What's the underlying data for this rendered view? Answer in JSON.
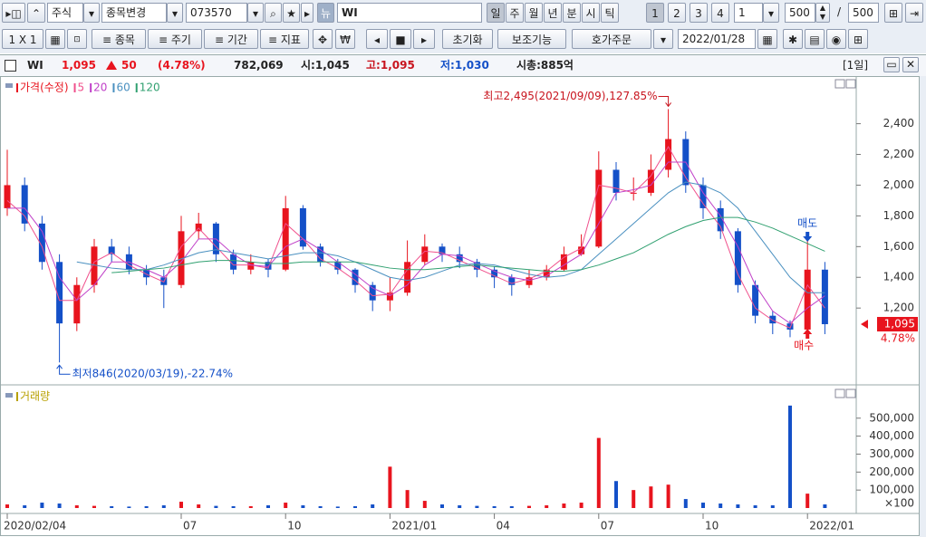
{
  "toolbar": {
    "stock_type": "주식",
    "change_stock": "종목변경",
    "code": "073570",
    "name": "WI",
    "periods": [
      "일",
      "주",
      "월",
      "년",
      "분",
      "시",
      "틱"
    ],
    "numbers": [
      "1",
      "2",
      "3",
      "4"
    ],
    "interval": "1",
    "count": "500",
    "slash": "/",
    "total": "500",
    "layout": "1 X 1",
    "menus": [
      "종목",
      "주기",
      "기간",
      "지표"
    ],
    "reset": "초기화",
    "aux": "보조기능",
    "order": "호가주문",
    "date": "2022/01/28"
  },
  "quote": {
    "name": "WI",
    "price": "1,095",
    "change": "50",
    "rate": "(4.78%)",
    "volume": "782,069",
    "open": "시:1,045",
    "high": "고:1,095",
    "low": "저:1,030",
    "market_cap": "시총:885억",
    "period": "[1일]"
  },
  "chart_data": [
    {
      "type": "candlestick",
      "legend_title": "가격(수정)",
      "up_color": "#e8141e",
      "down_color": "#1450c8",
      "open": [
        1850,
        2000,
        1750,
        1500,
        1100,
        1350,
        1600,
        1550,
        1450,
        1400,
        1350,
        1700,
        1750,
        1550,
        1450,
        1500,
        1450,
        1850,
        1600,
        1500,
        1450,
        1350,
        1250,
        1300,
        1500,
        1600,
        1550,
        1500,
        1450,
        1400,
        1350,
        1400,
        1450,
        1550,
        1600,
        2100,
        1950,
        1950,
        2100,
        2300,
        2000,
        1850,
        1700,
        1350,
        1150,
        1100,
        1060,
        1450
      ],
      "high": [
        2230,
        2050,
        1800,
        1550,
        1400,
        1650,
        1650,
        1600,
        1480,
        1450,
        1800,
        1820,
        1760,
        1580,
        1550,
        1520,
        1930,
        1870,
        1620,
        1520,
        1460,
        1370,
        1400,
        1640,
        1680,
        1620,
        1600,
        1520,
        1470,
        1420,
        1450,
        1480,
        1600,
        1680,
        2220,
        2150,
        2050,
        2200,
        2495,
        2350,
        2050,
        1900,
        1720,
        1380,
        1180,
        1120,
        1650,
        1500
      ],
      "low": [
        1800,
        1700,
        1450,
        846,
        1050,
        1300,
        1500,
        1420,
        1350,
        1200,
        1330,
        1650,
        1500,
        1420,
        1420,
        1400,
        1440,
        1580,
        1470,
        1420,
        1300,
        1180,
        1180,
        1280,
        1480,
        1500,
        1460,
        1400,
        1330,
        1280,
        1330,
        1380,
        1440,
        1540,
        1590,
        1900,
        1900,
        1930,
        2050,
        1950,
        1780,
        1650,
        1300,
        1100,
        1030,
        1010,
        1050,
        1030
      ],
      "close": [
        2000,
        1750,
        1500,
        1100,
        1350,
        1600,
        1550,
        1450,
        1400,
        1350,
        1700,
        1750,
        1550,
        1450,
        1500,
        1450,
        1850,
        1600,
        1500,
        1450,
        1350,
        1250,
        1300,
        1500,
        1600,
        1550,
        1500,
        1450,
        1400,
        1350,
        1400,
        1450,
        1550,
        1600,
        2100,
        1950,
        1950,
        2100,
        2300,
        2000,
        1850,
        1700,
        1350,
        1150,
        1100,
        1060,
        1450,
        1095
      ],
      "series": [
        {
          "name": "5",
          "color": "#f0508c",
          "values": [
            1900,
            1800,
            1600,
            1250,
            1250,
            1500,
            1560,
            1480,
            1420,
            1370,
            1600,
            1720,
            1600,
            1480,
            1480,
            1460,
            1750,
            1650,
            1520,
            1460,
            1380,
            1280,
            1290,
            1450,
            1570,
            1560,
            1510,
            1460,
            1410,
            1360,
            1390,
            1440,
            1530,
            1590,
            2000,
            1980,
            1950,
            2060,
            2250,
            2050,
            1880,
            1730,
            1420,
            1200,
            1120,
            1070,
            1350,
            1200
          ]
        },
        {
          "name": "20",
          "color": "#c040c8",
          "values": [
            1850,
            1850,
            1700,
            1400,
            1250,
            1350,
            1500,
            1500,
            1450,
            1400,
            1500,
            1650,
            1650,
            1550,
            1480,
            1470,
            1600,
            1650,
            1580,
            1500,
            1420,
            1330,
            1280,
            1350,
            1480,
            1550,
            1540,
            1490,
            1440,
            1400,
            1380,
            1410,
            1480,
            1550,
            1750,
            1950,
            1970,
            2000,
            2150,
            2150,
            1950,
            1800,
            1600,
            1350,
            1180,
            1100,
            1200,
            1280
          ]
        },
        {
          "name": "60",
          "color": "#4a90c0",
          "values": [
            null,
            null,
            null,
            null,
            1500,
            1480,
            1460,
            1450,
            1450,
            1480,
            1520,
            1560,
            1580,
            1560,
            1540,
            1520,
            1540,
            1560,
            1560,
            1540,
            1500,
            1450,
            1400,
            1380,
            1400,
            1440,
            1480,
            1490,
            1480,
            1450,
            1420,
            1400,
            1410,
            1450,
            1550,
            1650,
            1750,
            1850,
            1950,
            2020,
            2000,
            1950,
            1850,
            1700,
            1550,
            1400,
            1300,
            1300
          ]
        },
        {
          "name": "120",
          "color": "#30a070",
          "values": [
            null,
            null,
            null,
            null,
            null,
            null,
            1430,
            1440,
            1450,
            1460,
            1480,
            1500,
            1510,
            1510,
            1500,
            1490,
            1490,
            1500,
            1500,
            1500,
            1500,
            1480,
            1460,
            1450,
            1450,
            1460,
            1470,
            1480,
            1470,
            1460,
            1450,
            1440,
            1440,
            1450,
            1480,
            1520,
            1560,
            1620,
            1680,
            1730,
            1770,
            1790,
            1790,
            1760,
            1720,
            1670,
            1620,
            1570
          ]
        }
      ],
      "ylim": [
        700,
        2710
      ],
      "yticks": [
        {
          "value": 1200,
          "label": "1,200"
        },
        {
          "value": 1400,
          "label": "1,400"
        },
        {
          "value": 1600,
          "label": "1,600"
        },
        {
          "value": 1800,
          "label": "1,800"
        },
        {
          "value": 2000,
          "label": "2,000"
        },
        {
          "value": 2200,
          "label": "2,200"
        },
        {
          "value": 2400,
          "label": "2,400"
        }
      ],
      "annotations": {
        "high": "최고2,495(2021/09/09),127.85%",
        "low": "최저846(2020/03/19),-22.74%",
        "sell": "매도",
        "buy": "매수"
      },
      "last_price": "1,095",
      "last_change": "4.78%"
    },
    {
      "type": "bar",
      "legend_title": "거래량",
      "categories": [
        "2020/02/04",
        null,
        null,
        null,
        null,
        null,
        null,
        null,
        null,
        null,
        "07",
        null,
        null,
        null,
        null,
        null,
        "10",
        null,
        null,
        null,
        null,
        null,
        "2021/01",
        null,
        null,
        null,
        null,
        null,
        "04",
        null,
        null,
        null,
        null,
        null,
        "07",
        null,
        null,
        null,
        null,
        null,
        "10",
        null,
        null,
        null,
        null,
        null,
        "2022/01",
        null
      ],
      "values": [
        20000,
        15000,
        30000,
        25000,
        15000,
        12000,
        10000,
        8000,
        10000,
        15000,
        35000,
        20000,
        12000,
        10000,
        10000,
        15000,
        30000,
        15000,
        10000,
        8000,
        10000,
        20000,
        230000,
        100000,
        40000,
        20000,
        15000,
        12000,
        10000,
        10000,
        12000,
        15000,
        25000,
        30000,
        390000,
        150000,
        100000,
        120000,
        130000,
        50000,
        30000,
        25000,
        20000,
        15000,
        15000,
        570000,
        80000,
        20000
      ],
      "ylim": [
        0,
        650000
      ],
      "yticks": [
        {
          "value": 100000,
          "label": "100,000"
        },
        {
          "value": 200000,
          "label": "200,000"
        },
        {
          "value": 300000,
          "label": "300,000"
        },
        {
          "value": 400000,
          "label": "400,000"
        },
        {
          "value": 500000,
          "label": "500,000"
        }
      ],
      "unit_label": "×100"
    }
  ]
}
